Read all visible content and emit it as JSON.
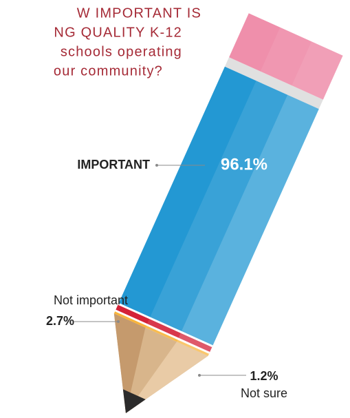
{
  "chart_data": {
    "type": "pencil",
    "title": [
      "W IMPORTANT IS",
      "NG QUALITY K-12",
      "schools operating",
      "our community?"
    ],
    "categories": [
      "IMPORTANT",
      "Not important",
      "Not sure"
    ],
    "values": [
      96.1,
      2.7,
      1.2
    ],
    "value_labels": [
      "96.1%",
      "2.7%",
      "1.2%"
    ],
    "colors": [
      "#2398d3",
      "#d42238",
      "#f8b43c"
    ]
  }
}
